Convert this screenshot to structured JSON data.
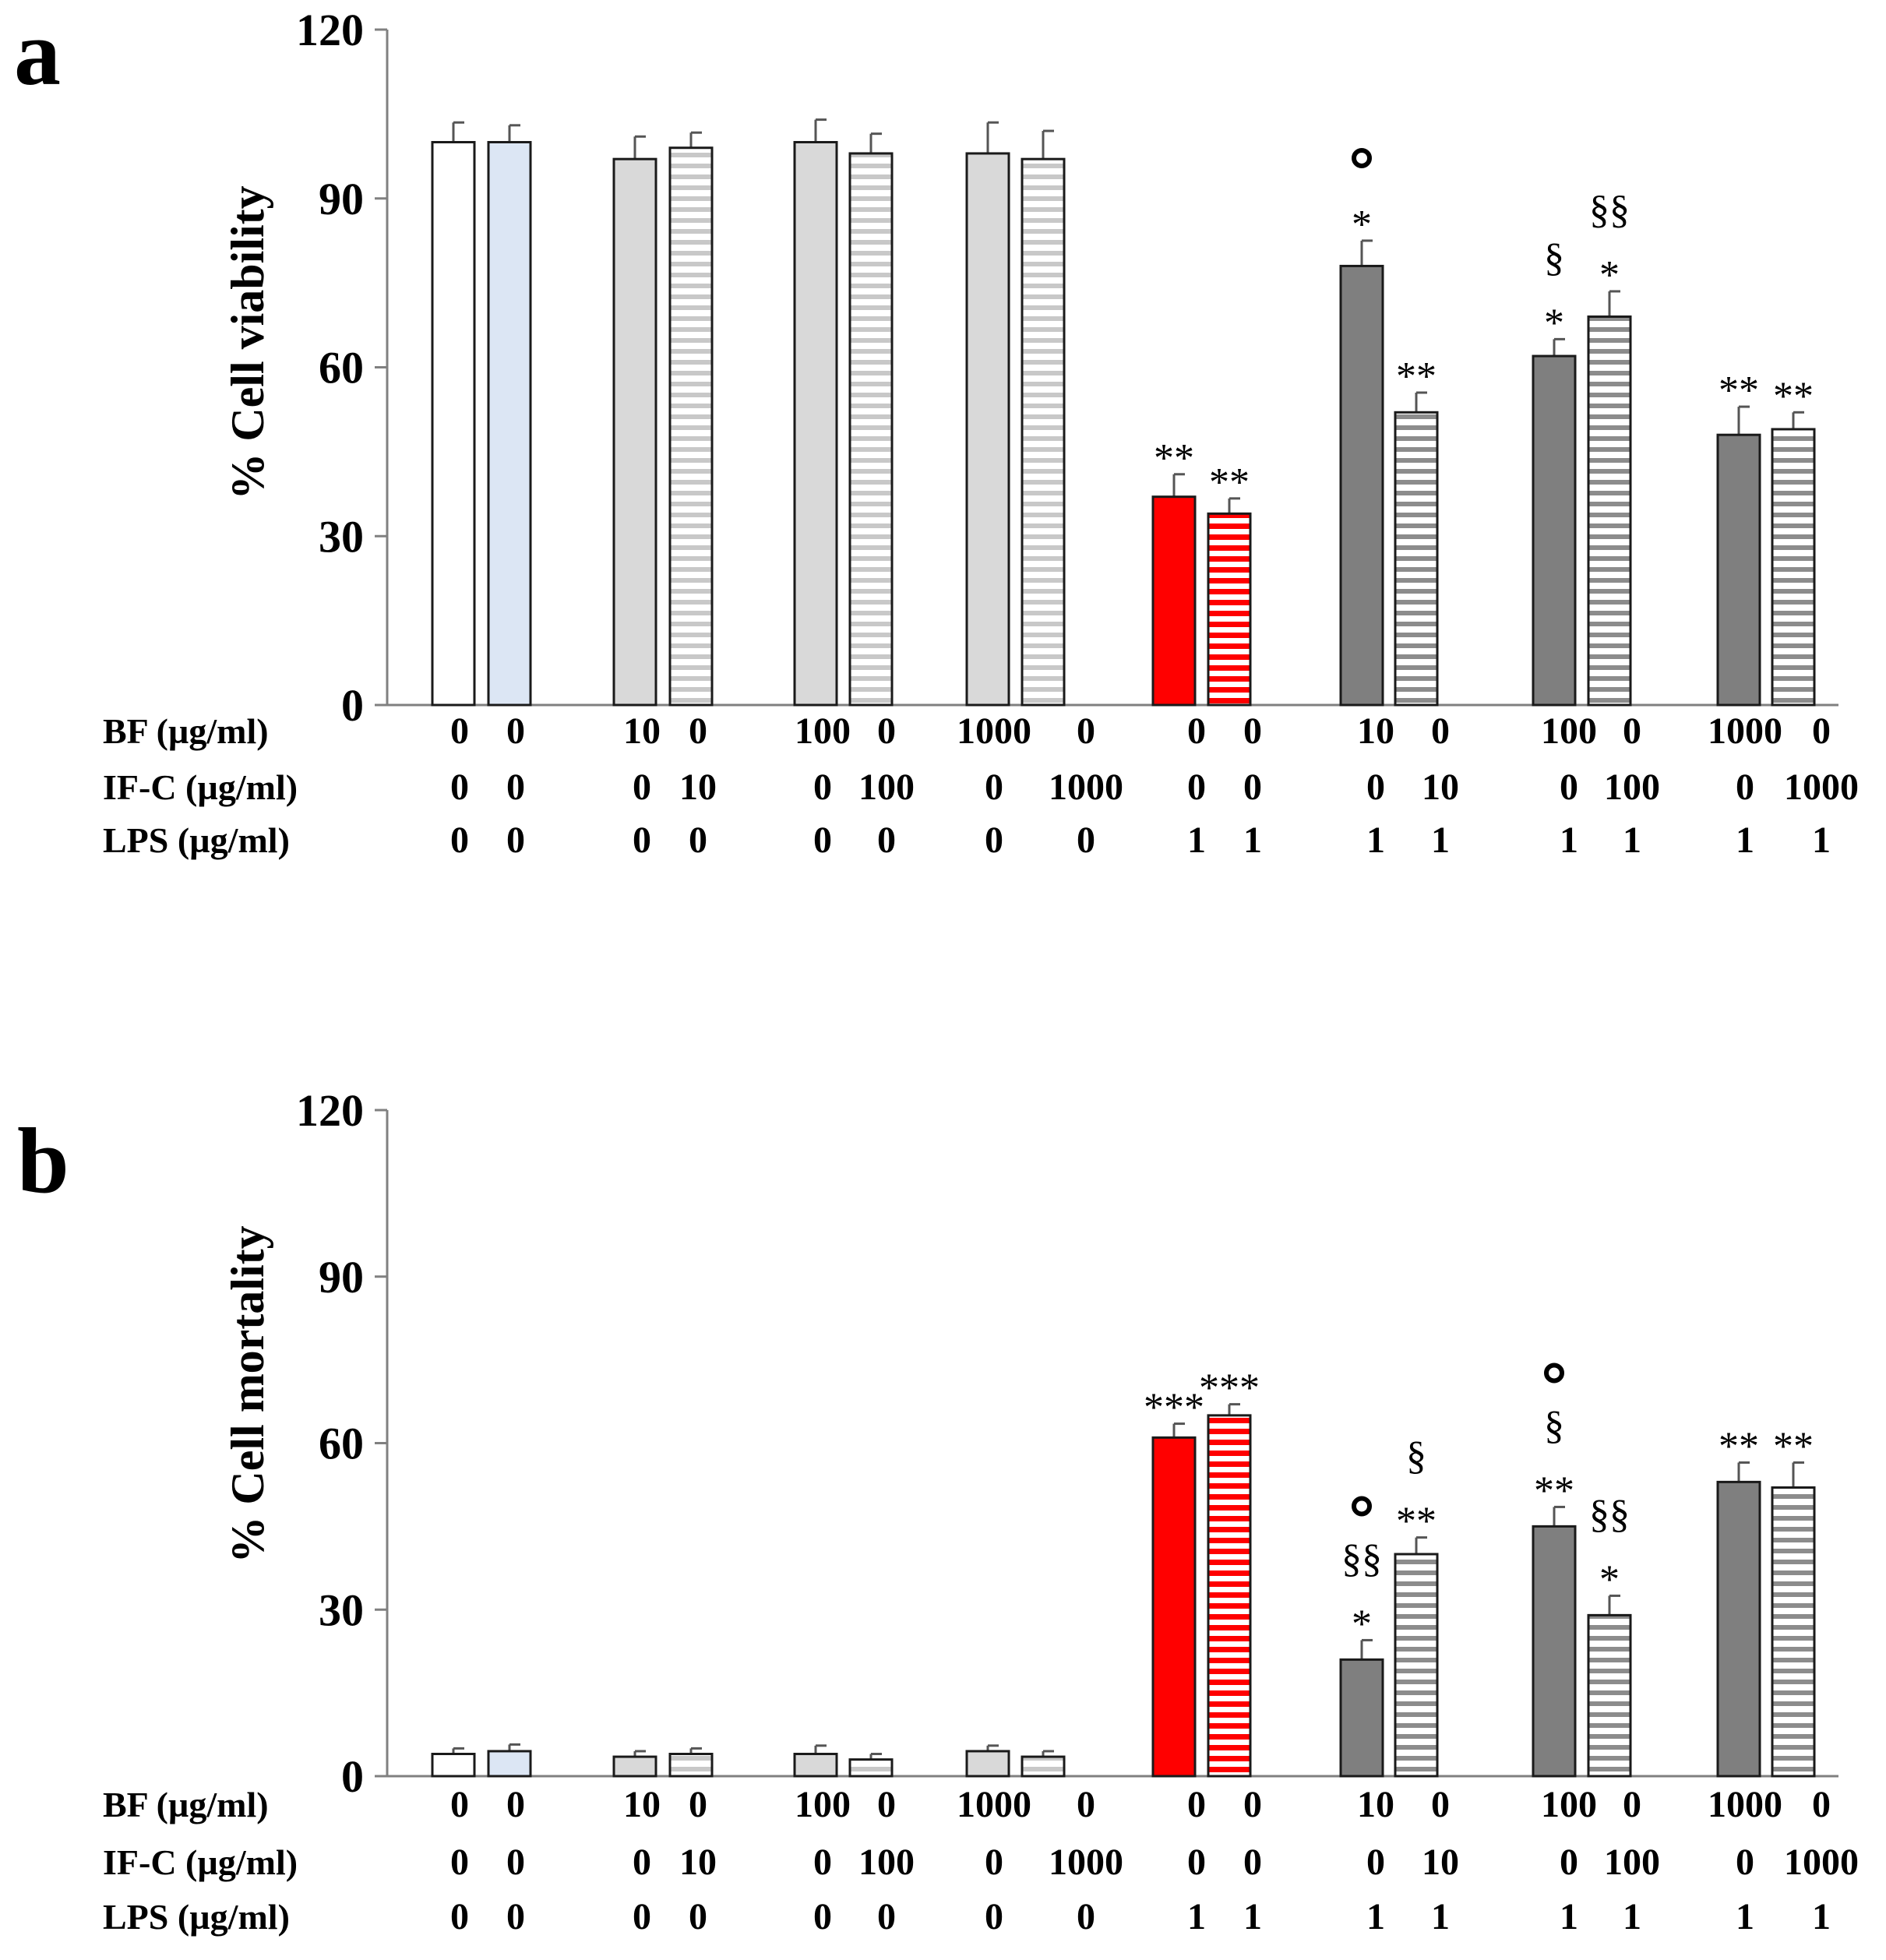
{
  "colors": {
    "white": "#ffffff",
    "light_blue": "#dce6f4",
    "light_gray": "#d9d9d9",
    "red": "#ff0000",
    "dark_gray": "#7f7f7f",
    "axis": "#808080",
    "stripe_gray": "#8c8c8c",
    "stripe_red": "#ff0000"
  },
  "chart_data": [
    {
      "panel": "a",
      "type": "bar",
      "ylabel": "% Cell viability",
      "ylim": [
        0,
        120
      ],
      "yticks": [
        "0",
        "30",
        "60",
        "90",
        "120"
      ],
      "table_rows": [
        {
          "label": "BF (µg/ml)",
          "values": [
            "0",
            "0",
            "10",
            "0",
            "100",
            "0",
            "1000",
            "0",
            "0",
            "0",
            "10",
            "0",
            "100",
            "0",
            "1000",
            "0"
          ]
        },
        {
          "label": "IF-C (µg/ml)",
          "values": [
            "0",
            "0",
            "0",
            "10",
            "0",
            "100",
            "0",
            "1000",
            "0",
            "0",
            "0",
            "10",
            "0",
            "100",
            "0",
            "1000"
          ]
        },
        {
          "label": "LPS (µg/ml)",
          "values": [
            "0",
            "0",
            "0",
            "0",
            "0",
            "0",
            "0",
            "0",
            "1",
            "1",
            "1",
            "1",
            "1",
            "1",
            "1",
            "1"
          ]
        }
      ],
      "bars": [
        {
          "value": 100,
          "error": 3.5,
          "fill": "white",
          "striped": false,
          "annotations": []
        },
        {
          "value": 100,
          "error": 3,
          "fill": "light_blue",
          "striped": false,
          "annotations": []
        },
        {
          "value": 97,
          "error": 4,
          "fill": "light_gray",
          "striped": false,
          "annotations": []
        },
        {
          "value": 99,
          "error": 2.7,
          "fill": "light_gray",
          "striped": true,
          "annotations": []
        },
        {
          "value": 100,
          "error": 4,
          "fill": "light_gray",
          "striped": false,
          "annotations": []
        },
        {
          "value": 98,
          "error": 3.5,
          "fill": "light_gray",
          "striped": true,
          "annotations": []
        },
        {
          "value": 98,
          "error": 5.5,
          "fill": "light_gray",
          "striped": false,
          "annotations": []
        },
        {
          "value": 97,
          "error": 5,
          "fill": "light_gray",
          "striped": true,
          "annotations": []
        },
        {
          "value": 37,
          "error": 4,
          "fill": "red",
          "striped": false,
          "annotations": [
            "**"
          ]
        },
        {
          "value": 34,
          "error": 2.7,
          "fill": "red",
          "striped": true,
          "annotations": [
            "**"
          ]
        },
        {
          "value": 78,
          "error": 4.5,
          "fill": "dark_gray",
          "striped": false,
          "annotations": [
            "*",
            "°"
          ]
        },
        {
          "value": 52,
          "error": 3.5,
          "fill": "dark_gray",
          "striped": true,
          "annotations": [
            "**"
          ]
        },
        {
          "value": 62,
          "error": 3,
          "fill": "dark_gray",
          "striped": false,
          "annotations": [
            "*",
            "§"
          ]
        },
        {
          "value": 69,
          "error": 4.5,
          "fill": "dark_gray",
          "striped": true,
          "annotations": [
            "*",
            "§§"
          ]
        },
        {
          "value": 48,
          "error": 5,
          "fill": "dark_gray",
          "striped": false,
          "annotations": [
            "**"
          ]
        },
        {
          "value": 49,
          "error": 3,
          "fill": "dark_gray",
          "striped": true,
          "annotations": [
            "**"
          ]
        }
      ]
    },
    {
      "panel": "b",
      "type": "bar",
      "ylabel": "% Cell mortality",
      "ylim": [
        0,
        120
      ],
      "yticks": [
        "0",
        "30",
        "60",
        "90",
        "120"
      ],
      "table_rows": [
        {
          "label": "BF (µg/ml)",
          "values": [
            "0",
            "0",
            "10",
            "0",
            "100",
            "0",
            "1000",
            "0",
            "0",
            "0",
            "10",
            "0",
            "100",
            "0",
            "1000",
            "0"
          ]
        },
        {
          "label": "IF-C (µg/ml)",
          "values": [
            "0",
            "0",
            "0",
            "10",
            "0",
            "100",
            "0",
            "1000",
            "0",
            "0",
            "0",
            "10",
            "0",
            "100",
            "0",
            "1000"
          ]
        },
        {
          "label": "LPS (µg/ml)",
          "values": [
            "0",
            "0",
            "0",
            "0",
            "0",
            "0",
            "0",
            "0",
            "1",
            "1",
            "1",
            "1",
            "1",
            "1",
            "1",
            "1"
          ]
        }
      ],
      "bars": [
        {
          "value": 4,
          "error": 1,
          "fill": "white",
          "striped": false,
          "annotations": []
        },
        {
          "value": 4.5,
          "error": 1.2,
          "fill": "light_blue",
          "striped": false,
          "annotations": []
        },
        {
          "value": 3.5,
          "error": 1,
          "fill": "light_gray",
          "striped": false,
          "annotations": []
        },
        {
          "value": 4,
          "error": 1,
          "fill": "light_gray",
          "striped": true,
          "annotations": []
        },
        {
          "value": 4,
          "error": 1.5,
          "fill": "light_gray",
          "striped": false,
          "annotations": []
        },
        {
          "value": 3,
          "error": 1,
          "fill": "light_gray",
          "striped": true,
          "annotations": []
        },
        {
          "value": 4.5,
          "error": 1,
          "fill": "light_gray",
          "striped": false,
          "annotations": []
        },
        {
          "value": 3.5,
          "error": 1,
          "fill": "light_gray",
          "striped": true,
          "annotations": []
        },
        {
          "value": 61,
          "error": 2.5,
          "fill": "red",
          "striped": false,
          "annotations": [
            "***"
          ]
        },
        {
          "value": 65,
          "error": 2,
          "fill": "red",
          "striped": true,
          "annotations": [
            "***"
          ]
        },
        {
          "value": 21,
          "error": 3.5,
          "fill": "dark_gray",
          "striped": false,
          "annotations": [
            "*",
            "§§",
            "°"
          ]
        },
        {
          "value": 40,
          "error": 3,
          "fill": "dark_gray",
          "striped": true,
          "annotations": [
            "**",
            "§"
          ]
        },
        {
          "value": 45,
          "error": 3.5,
          "fill": "dark_gray",
          "striped": false,
          "annotations": [
            "**",
            "§",
            "°"
          ]
        },
        {
          "value": 29,
          "error": 3.5,
          "fill": "dark_gray",
          "striped": true,
          "annotations": [
            "*",
            "§§"
          ]
        },
        {
          "value": 53,
          "error": 3.5,
          "fill": "dark_gray",
          "striped": false,
          "annotations": [
            "**"
          ]
        },
        {
          "value": 52,
          "error": 4.5,
          "fill": "dark_gray",
          "striped": true,
          "annotations": [
            "**"
          ]
        }
      ]
    }
  ]
}
